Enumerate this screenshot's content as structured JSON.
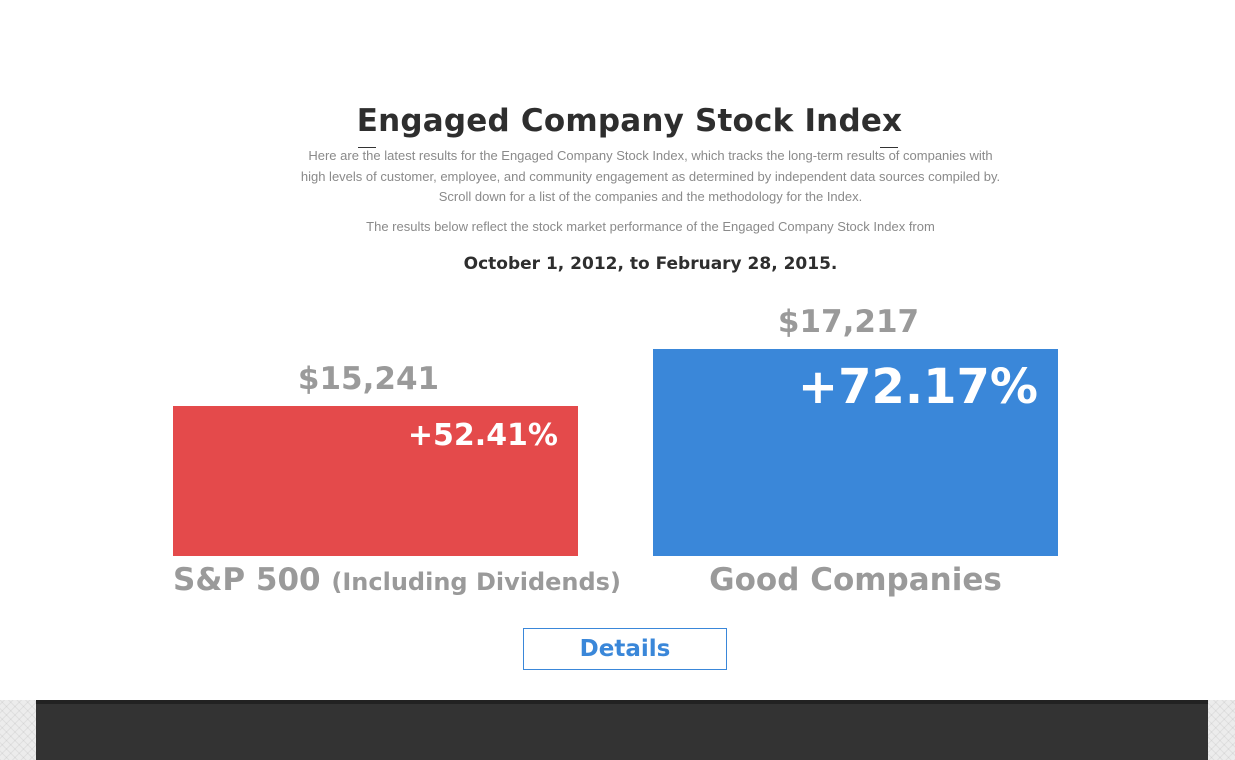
{
  "header": {
    "title": "Engaged Company Stock Index",
    "intro": "Here are the latest results for the Engaged Company Stock Index, which tracks the long-term results of companies with high levels of customer, employee, and community engagement as determined by independent data sources compiled by. Scroll down for a list of the companies and the methodology for the Index.",
    "results_note": "The results below reflect the stock market performance of the Engaged Company Stock Index from",
    "date_range": "October 1, 2012, to February 28, 2015."
  },
  "chart_data": {
    "type": "bar",
    "categories": [
      "S&P 500 (Including Dividends)",
      "Good Companies"
    ],
    "values": [
      15241,
      17217
    ],
    "value_labels": [
      "$15,241",
      "$17,217"
    ],
    "percent_changes": [
      "+52.41%",
      "+72.17%"
    ],
    "category_parts": [
      {
        "main": "S&P 500",
        "sub": "(Including Dividends)"
      },
      {
        "main": "Good Companies",
        "sub": ""
      }
    ],
    "colors": [
      "#e44a4b",
      "#3a87d9"
    ]
  },
  "actions": {
    "details_label": "Details"
  }
}
